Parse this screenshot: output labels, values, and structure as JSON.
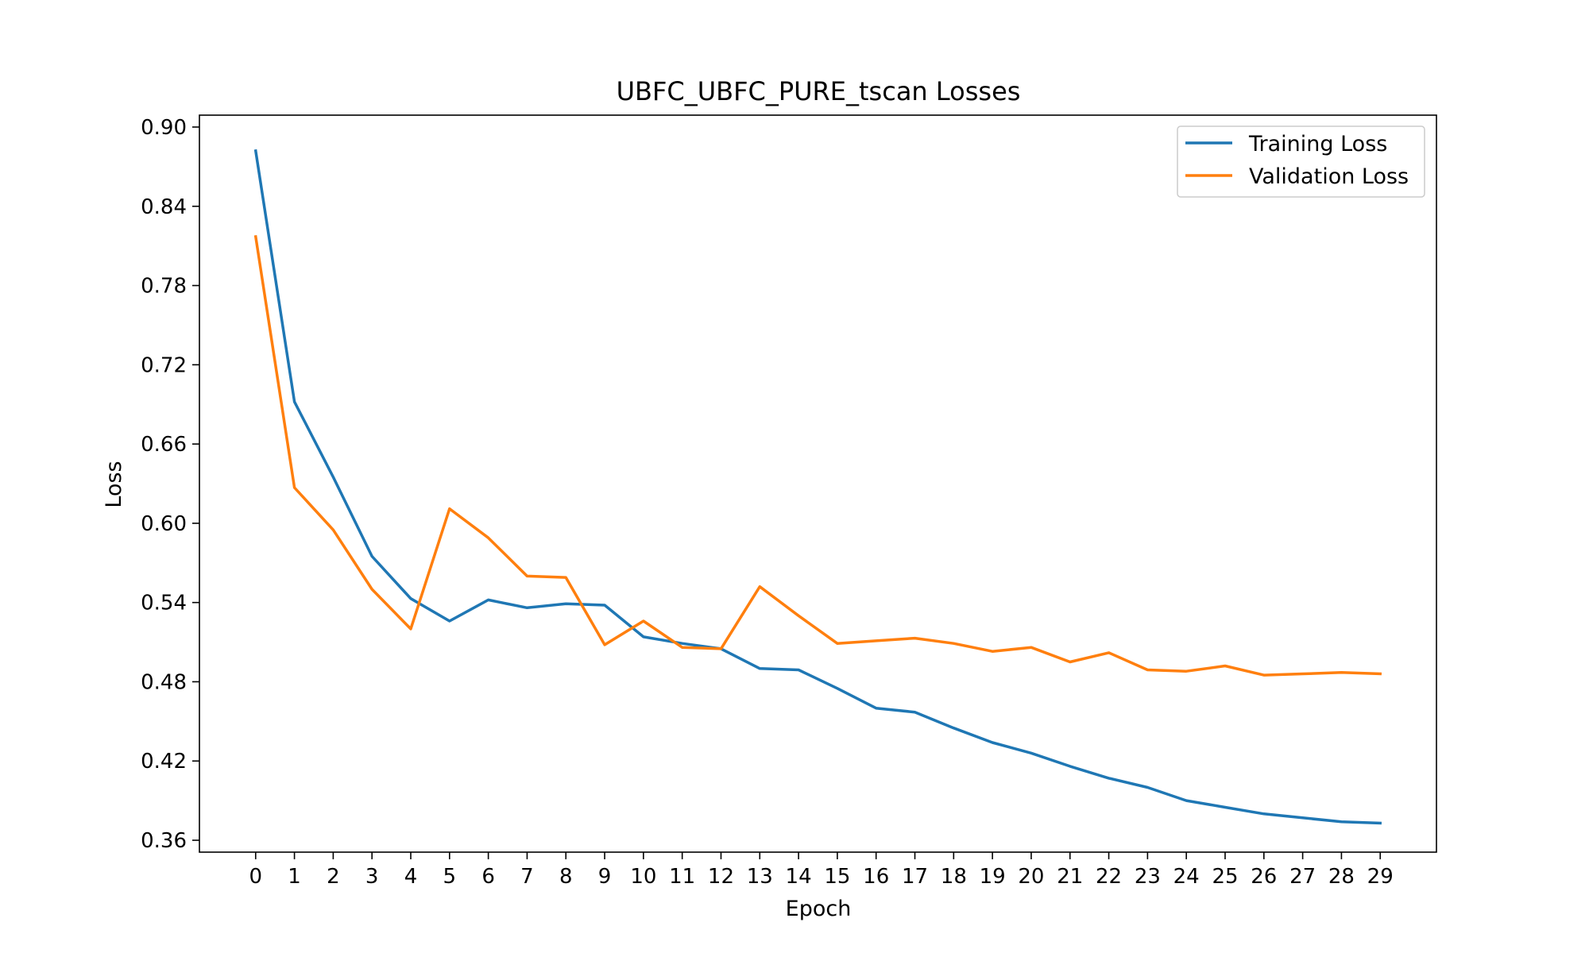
{
  "chart_data": {
    "type": "line",
    "title": "UBFC_UBFC_PURE_tscan Losses",
    "xlabel": "Epoch",
    "ylabel": "Loss",
    "x": [
      0,
      1,
      2,
      3,
      4,
      5,
      6,
      7,
      8,
      9,
      10,
      11,
      12,
      13,
      14,
      15,
      16,
      17,
      18,
      19,
      20,
      21,
      22,
      23,
      24,
      25,
      26,
      27,
      28,
      29
    ],
    "x_ticks": [
      "0",
      "1",
      "2",
      "3",
      "4",
      "5",
      "6",
      "7",
      "8",
      "9",
      "10",
      "11",
      "12",
      "13",
      "14",
      "15",
      "16",
      "17",
      "18",
      "19",
      "20",
      "21",
      "22",
      "23",
      "24",
      "25",
      "26",
      "27",
      "28",
      "29"
    ],
    "xlim": [
      -1.45,
      30.45
    ],
    "y_ticks": [
      "0.36",
      "0.42",
      "0.48",
      "0.54",
      "0.60",
      "0.66",
      "0.72",
      "0.78",
      "0.84",
      "0.90"
    ],
    "ylim": [
      0.351,
      0.909
    ],
    "grid": false,
    "legend_position": "top-right",
    "series": [
      {
        "name": "Training Loss",
        "color": "#1f77b4",
        "values": [
          0.882,
          0.692,
          0.635,
          0.575,
          0.543,
          0.526,
          0.542,
          0.536,
          0.539,
          0.538,
          0.514,
          0.509,
          0.505,
          0.49,
          0.489,
          0.475,
          0.46,
          0.457,
          0.445,
          0.434,
          0.426,
          0.416,
          0.407,
          0.4,
          0.39,
          0.385,
          0.38,
          0.377,
          0.374,
          0.373
        ]
      },
      {
        "name": "Validation Loss",
        "color": "#ff7f0e",
        "values": [
          0.817,
          0.627,
          0.595,
          0.55,
          0.52,
          0.611,
          0.589,
          0.56,
          0.559,
          0.508,
          0.526,
          0.506,
          0.505,
          0.552,
          0.53,
          0.509,
          0.511,
          0.513,
          0.509,
          0.503,
          0.506,
          0.495,
          0.502,
          0.489,
          0.488,
          0.492,
          0.485,
          0.486,
          0.487,
          0.486
        ]
      }
    ]
  }
}
